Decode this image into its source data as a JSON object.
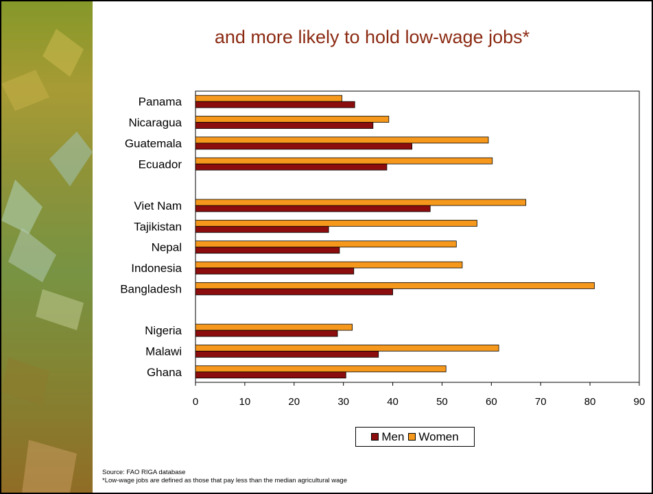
{
  "title": "and more likely to hold low-wage jobs*",
  "colors": {
    "title": "#8b2a12",
    "men": "#8b0d0d",
    "women": "#f6981c"
  },
  "chart_data": {
    "type": "bar",
    "orientation": "horizontal",
    "categories": [
      "Panama",
      "Nicaragua",
      "Guatemala",
      "Ecuador",
      "Viet Nam",
      "Tajikistan",
      "Nepal",
      "Indonesia",
      "Bangladesh",
      "Nigeria",
      "Malawi",
      "Ghana"
    ],
    "groups": [
      [
        "Panama",
        "Nicaragua",
        "Guatemala",
        "Ecuador"
      ],
      [
        "Viet Nam",
        "Tajikistan",
        "Nepal",
        "Indonesia",
        "Bangladesh"
      ],
      [
        "Nigeria",
        "Malawi",
        "Ghana"
      ]
    ],
    "series": [
      {
        "name": "Men",
        "values": [
          32.3,
          36.0,
          43.9,
          38.8,
          47.6,
          27.0,
          29.2,
          32.1,
          40.0,
          28.8,
          37.1,
          30.5
        ]
      },
      {
        "name": "Women",
        "values": [
          29.7,
          39.2,
          59.4,
          60.2,
          67.0,
          57.1,
          52.9,
          54.1,
          80.9,
          31.8,
          61.5,
          50.8
        ]
      }
    ],
    "xticks": [
      0,
      10,
      20,
      30,
      40,
      50,
      60,
      70,
      80,
      90
    ],
    "xlim": [
      0,
      90
    ],
    "xlabel": "",
    "ylabel": "",
    "grid": false,
    "legend": "bottom"
  },
  "legend": {
    "men_label": "Men",
    "women_label": "Women"
  },
  "source": "Source: FAO RIGA database",
  "footnote": "*Low-wage jobs are defined as those that pay less than the median agricultural wage"
}
